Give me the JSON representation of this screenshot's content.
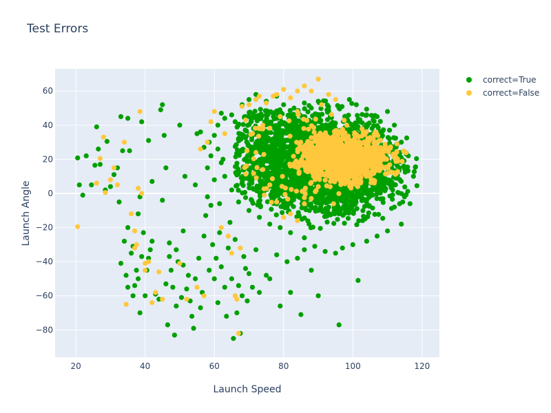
{
  "colors": {
    "plot_background": "#e5ecf6",
    "grid": "#ffffff",
    "text": "#2a3f5f",
    "series_true": "#009f00",
    "series_false": "#ffc83d"
  },
  "chart_data": {
    "type": "scatter",
    "title": "Test Errors",
    "xlabel": "Launch Speed",
    "ylabel": "Launch Angle",
    "xlim": [
      14,
      125
    ],
    "ylim": [
      -96,
      73
    ],
    "x_ticks": [
      20,
      40,
      60,
      80,
      100,
      120
    ],
    "y_ticks": [
      -80,
      -60,
      -40,
      -20,
      0,
      20,
      40,
      60
    ],
    "x_tick_labels": [
      "20",
      "40",
      "60",
      "80",
      "100",
      "120"
    ],
    "y_tick_labels": [
      "−80",
      "−60",
      "−40",
      "−20",
      "0",
      "20",
      "40",
      "60"
    ],
    "grid": true,
    "legend_position": "top-right outside plot",
    "series": [
      {
        "name": "correct=True",
        "color": "#009f00",
        "points": [
          [
            20.5,
            20.8
          ],
          [
            21,
            5
          ],
          [
            22,
            -1
          ],
          [
            23,
            22
          ],
          [
            24.5,
            5
          ],
          [
            25.5,
            16.5
          ],
          [
            26,
            39
          ],
          [
            26.5,
            26
          ],
          [
            27,
            17
          ],
          [
            28.5,
            2
          ],
          [
            29,
            30.5
          ],
          [
            30,
            4
          ],
          [
            31,
            11
          ],
          [
            32,
            15
          ],
          [
            32.5,
            -5
          ],
          [
            33,
            45
          ],
          [
            33.5,
            25
          ],
          [
            33,
            -41
          ],
          [
            34,
            -28
          ],
          [
            34.5,
            -48
          ],
          [
            35,
            -55
          ],
          [
            35,
            -20
          ],
          [
            35.5,
            25
          ],
          [
            35,
            44
          ],
          [
            36,
            -35
          ],
          [
            36.5,
            -31
          ],
          [
            36.5,
            -60
          ],
          [
            37,
            -54
          ],
          [
            37.5,
            -45
          ],
          [
            38,
            -50
          ],
          [
            38,
            -12
          ],
          [
            38.5,
            -2
          ],
          [
            38.5,
            -70
          ],
          [
            39,
            42
          ],
          [
            39,
            -37
          ],
          [
            39.5,
            -23
          ],
          [
            40,
            -60
          ],
          [
            40.5,
            -45
          ],
          [
            41,
            -38
          ],
          [
            41,
            31
          ],
          [
            41.5,
            -33
          ],
          [
            42,
            -28
          ],
          [
            42,
            7
          ],
          [
            43,
            -59
          ],
          [
            44,
            -62
          ],
          [
            44.5,
            49
          ],
          [
            45,
            -4
          ],
          [
            45,
            52
          ],
          [
            45.5,
            34
          ],
          [
            46,
            -53
          ],
          [
            46,
            15
          ],
          [
            46.5,
            -77
          ],
          [
            47,
            -37
          ],
          [
            47,
            -29
          ],
          [
            47.5,
            -45
          ],
          [
            48,
            -55
          ],
          [
            48.5,
            -83
          ],
          [
            49,
            -66
          ],
          [
            49,
            -33
          ],
          [
            49.5,
            -40
          ],
          [
            50,
            40
          ],
          [
            50.5,
            -61
          ],
          [
            51,
            -22
          ],
          [
            51,
            -42
          ],
          [
            51.5,
            10
          ],
          [
            52,
            -56
          ],
          [
            52.5,
            -48
          ],
          [
            53,
            -63
          ],
          [
            53.5,
            -72
          ],
          [
            54,
            -79
          ],
          [
            54.5,
            -50
          ],
          [
            54.5,
            5
          ],
          [
            55,
            35
          ],
          [
            55.5,
            -38
          ],
          [
            56,
            -67
          ],
          [
            56.5,
            -58
          ],
          [
            57,
            -25
          ],
          [
            57.5,
            -13
          ],
          [
            58,
            -2
          ],
          [
            58.5,
            -45
          ],
          [
            59,
            -7
          ],
          [
            59.5,
            -30
          ],
          [
            60,
            -50
          ],
          [
            60.5,
            -38
          ],
          [
            61,
            -64
          ],
          [
            61.5,
            -23
          ],
          [
            62,
            -43
          ],
          [
            62.5,
            20
          ],
          [
            63,
            -55
          ],
          [
            63.5,
            -72
          ],
          [
            64,
            -32
          ],
          [
            64.5,
            -17
          ],
          [
            65,
            -50
          ],
          [
            65.5,
            -85
          ],
          [
            66,
            -27
          ],
          [
            66.5,
            -70
          ],
          [
            67,
            -54
          ],
          [
            67.5,
            -82
          ],
          [
            68,
            -60
          ],
          [
            68.5,
            -37
          ],
          [
            69,
            -44
          ],
          [
            69.5,
            -63
          ],
          [
            70,
            -47
          ],
          [
            71,
            -55
          ],
          [
            72,
            -33
          ],
          [
            73,
            -58
          ],
          [
            75,
            -48
          ],
          [
            76,
            -50
          ],
          [
            78,
            -36
          ],
          [
            79,
            -66
          ],
          [
            81,
            -40
          ],
          [
            82,
            -58
          ],
          [
            84,
            -38
          ],
          [
            85,
            -71
          ],
          [
            86,
            -33
          ],
          [
            88,
            -45
          ],
          [
            90,
            -60
          ],
          [
            96,
            -77
          ],
          [
            101.5,
            -51
          ],
          [
            62,
            47
          ],
          [
            65,
            46
          ],
          [
            68,
            52
          ],
          [
            70,
            55
          ],
          [
            72,
            58
          ],
          [
            75,
            54
          ],
          [
            78,
            57
          ],
          [
            80,
            52
          ],
          [
            83,
            50
          ],
          [
            86,
            53
          ],
          [
            88,
            50
          ],
          [
            90,
            54
          ],
          [
            93,
            48
          ],
          [
            96,
            50
          ],
          [
            99,
            55
          ],
          [
            101,
            52
          ],
          [
            104,
            46
          ],
          [
            107,
            45
          ],
          [
            110,
            48
          ],
          [
            112,
            40
          ],
          [
            114,
            30
          ],
          [
            116,
            22
          ],
          [
            117.5,
            10
          ],
          [
            118.5,
            4.5
          ],
          [
            116.5,
            -6
          ],
          [
            114,
            -18
          ],
          [
            112,
            -8
          ],
          [
            110,
            -22
          ],
          [
            107,
            -25
          ],
          [
            104,
            -28
          ],
          [
            100,
            -30
          ],
          [
            97,
            -32
          ],
          [
            95,
            -35
          ],
          [
            92,
            -34
          ],
          [
            89,
            -31
          ],
          [
            86,
            -26
          ],
          [
            82,
            -23
          ],
          [
            79,
            -20
          ],
          [
            76,
            -18
          ],
          [
            73,
            -14
          ],
          [
            70,
            -10
          ],
          [
            67,
            -5
          ],
          [
            65,
            2
          ],
          [
            63,
            10
          ],
          [
            62,
            18
          ],
          [
            61,
            26
          ],
          [
            60,
            34
          ],
          [
            61,
            40
          ],
          [
            63,
            44
          ],
          [
            66,
            42
          ],
          [
            69,
            45
          ],
          [
            60,
            8
          ],
          [
            58,
            15
          ],
          [
            57,
            27
          ],
          [
            56,
            36
          ],
          [
            59,
            22
          ],
          [
            58.5,
            30
          ],
          [
            61.5,
            -6
          ]
        ],
        "cluster": {
          "note": "Dense cloud of correct=True points",
          "x_range": [
            58,
            118
          ],
          "y_range": [
            -35,
            58
          ],
          "center": [
            93,
            17
          ],
          "approximate_count": 5000
        }
      },
      {
        "name": "correct=False",
        "color": "#ffc83d",
        "points": [
          [
            20.5,
            -19.5
          ],
          [
            26,
            6
          ],
          [
            27,
            20.5
          ],
          [
            28,
            33
          ],
          [
            28.5,
            0.5
          ],
          [
            30,
            8
          ],
          [
            31,
            15
          ],
          [
            32,
            5
          ],
          [
            34,
            30
          ],
          [
            34.5,
            -65
          ],
          [
            36,
            -12
          ],
          [
            37,
            -22
          ],
          [
            37.5,
            -30
          ],
          [
            37,
            -32
          ],
          [
            38,
            3
          ],
          [
            38.5,
            48
          ],
          [
            39,
            0
          ],
          [
            40,
            -45
          ],
          [
            40,
            -41
          ],
          [
            41,
            -40
          ],
          [
            42,
            -64
          ],
          [
            43,
            -58
          ],
          [
            44,
            -46
          ],
          [
            45,
            -62
          ],
          [
            50,
            -41
          ],
          [
            52,
            -62
          ],
          [
            55,
            -55
          ],
          [
            56,
            26
          ],
          [
            57,
            -60
          ],
          [
            58,
            30
          ],
          [
            59,
            42
          ],
          [
            60,
            48
          ],
          [
            62,
            -20
          ],
          [
            63,
            35
          ],
          [
            64,
            -25
          ],
          [
            65,
            -35
          ],
          [
            66,
            -60
          ],
          [
            66.5,
            -62
          ],
          [
            67,
            -82
          ],
          [
            67.5,
            -32
          ],
          [
            68,
            51
          ],
          [
            70,
            52
          ],
          [
            72,
            55
          ],
          [
            73,
            57
          ],
          [
            75,
            53
          ],
          [
            77,
            57
          ],
          [
            78,
            58
          ],
          [
            80,
            61
          ],
          [
            82,
            56
          ],
          [
            84,
            60
          ],
          [
            86,
            63
          ],
          [
            88,
            60
          ],
          [
            90,
            67
          ],
          [
            93,
            58
          ],
          [
            95,
            55
          ],
          [
            91,
            52
          ],
          [
            84,
            48
          ],
          [
            79,
            45
          ],
          [
            74,
            40
          ],
          [
            69,
            43
          ],
          [
            71,
            35
          ],
          [
            72,
            24
          ],
          [
            74,
            14
          ],
          [
            76,
            5
          ],
          [
            78,
            -5
          ],
          [
            80,
            -14
          ],
          [
            82,
            -12
          ],
          [
            84,
            -16
          ],
          [
            86,
            -6
          ],
          [
            88,
            -3
          ],
          [
            90,
            4
          ]
        ],
        "cluster": {
          "note": "Dense cloud of correct=False points concentrated on the right side of the green cloud",
          "x_range": [
            70,
            115
          ],
          "y_range": [
            -10,
            45
          ],
          "center": [
            98,
            20
          ],
          "approximate_count": 1800
        }
      }
    ]
  }
}
